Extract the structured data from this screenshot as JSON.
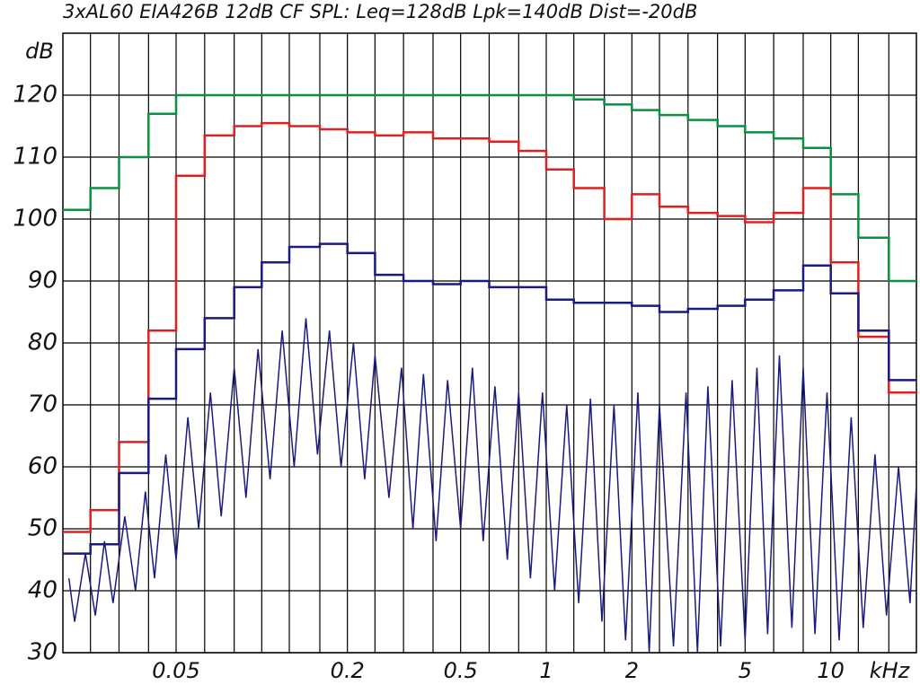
{
  "chart_data": {
    "type": "step",
    "title": "3xAL60 EIA426B 12dB CF SPL: Leq=128dB Lpk=140dB Dist=-20dB",
    "y_label": "dB",
    "x_unit": "kHz",
    "xlog": true,
    "xlim": [
      0.02,
      20
    ],
    "ylim": [
      30,
      130
    ],
    "xticks": [
      0.05,
      0.2,
      0.5,
      1,
      2,
      5,
      10
    ],
    "xgrid": [
      0.025,
      0.0315,
      0.04,
      0.05,
      0.063,
      0.08,
      0.1,
      0.125,
      0.16,
      0.2,
      0.25,
      0.315,
      0.4,
      0.5,
      0.63,
      0.8,
      1,
      1.25,
      1.6,
      2,
      2.5,
      3.15,
      4,
      5,
      6.3,
      8,
      10,
      12.5,
      16
    ],
    "yticks": [
      30,
      40,
      50,
      60,
      70,
      80,
      90,
      100,
      110,
      120
    ],
    "grid": true,
    "x": [
      0.02,
      0.025,
      0.0315,
      0.04,
      0.05,
      0.063,
      0.08,
      0.1,
      0.125,
      0.16,
      0.2,
      0.25,
      0.315,
      0.4,
      0.5,
      0.63,
      0.8,
      1,
      1.25,
      1.6,
      2,
      2.5,
      3.15,
      4,
      5,
      6.3,
      8,
      10,
      12.5,
      16
    ],
    "series": [
      {
        "color": "#0a9040",
        "values": [
          101.5,
          105,
          110,
          117,
          120,
          120,
          120,
          120,
          120,
          120,
          120,
          120,
          120,
          120,
          120,
          120,
          120,
          120,
          119.3,
          118.5,
          117.6,
          116.8,
          116,
          115,
          114,
          113,
          111.5,
          104,
          97,
          90
        ]
      },
      {
        "color": "#e02020",
        "values": [
          49.5,
          53,
          64,
          82,
          107,
          113.5,
          115,
          115.5,
          115,
          114.5,
          114,
          113.5,
          114,
          113,
          113,
          112.5,
          111,
          108,
          105,
          100,
          104,
          102,
          101,
          100.5,
          99.5,
          101,
          105,
          93,
          81,
          72
        ]
      },
      {
        "color": "#1a1a80",
        "values": [
          46,
          47.5,
          59,
          71,
          79,
          84,
          89,
          93,
          95.5,
          96,
          94.5,
          91,
          90,
          89.5,
          90,
          89,
          89,
          87,
          86.5,
          86.5,
          86,
          85,
          85.5,
          86,
          87,
          88.5,
          92.5,
          88,
          82,
          74
        ]
      }
    ],
    "spectrum": {
      "color": "#1a1a80",
      "x": [
        0.021,
        0.022,
        0.024,
        0.026,
        0.028,
        0.03,
        0.033,
        0.036,
        0.039,
        0.042,
        0.046,
        0.05,
        0.055,
        0.06,
        0.066,
        0.072,
        0.08,
        0.088,
        0.097,
        0.107,
        0.118,
        0.13,
        0.143,
        0.157,
        0.173,
        0.19,
        0.21,
        0.23,
        0.25,
        0.28,
        0.31,
        0.34,
        0.37,
        0.41,
        0.45,
        0.5,
        0.55,
        0.6,
        0.66,
        0.73,
        0.8,
        0.88,
        0.97,
        1.07,
        1.18,
        1.3,
        1.43,
        1.57,
        1.73,
        1.9,
        2.1,
        2.3,
        2.5,
        2.8,
        3.1,
        3.4,
        3.7,
        4.1,
        4.5,
        5,
        5.5,
        6,
        6.6,
        7.3,
        8,
        8.8,
        9.7,
        10.7,
        11.8,
        13,
        14.3,
        15.7,
        17.3,
        19,
        20
      ],
      "values": [
        42,
        35,
        46,
        36,
        48,
        38,
        52,
        40,
        56,
        42,
        62,
        45,
        68,
        50,
        72,
        52,
        76,
        55,
        79,
        58,
        82,
        60,
        84,
        62,
        82,
        60,
        80,
        58,
        78,
        55,
        76,
        50,
        75,
        48,
        74,
        50,
        76,
        48,
        73,
        45,
        72,
        42,
        72,
        40,
        70,
        38,
        71,
        35,
        70,
        32,
        72,
        30,
        70,
        31,
        72,
        30,
        73,
        31,
        74,
        32,
        76,
        33,
        78,
        34,
        76,
        33,
        72,
        32,
        68,
        34,
        62,
        36,
        60,
        38,
        57
      ]
    }
  }
}
